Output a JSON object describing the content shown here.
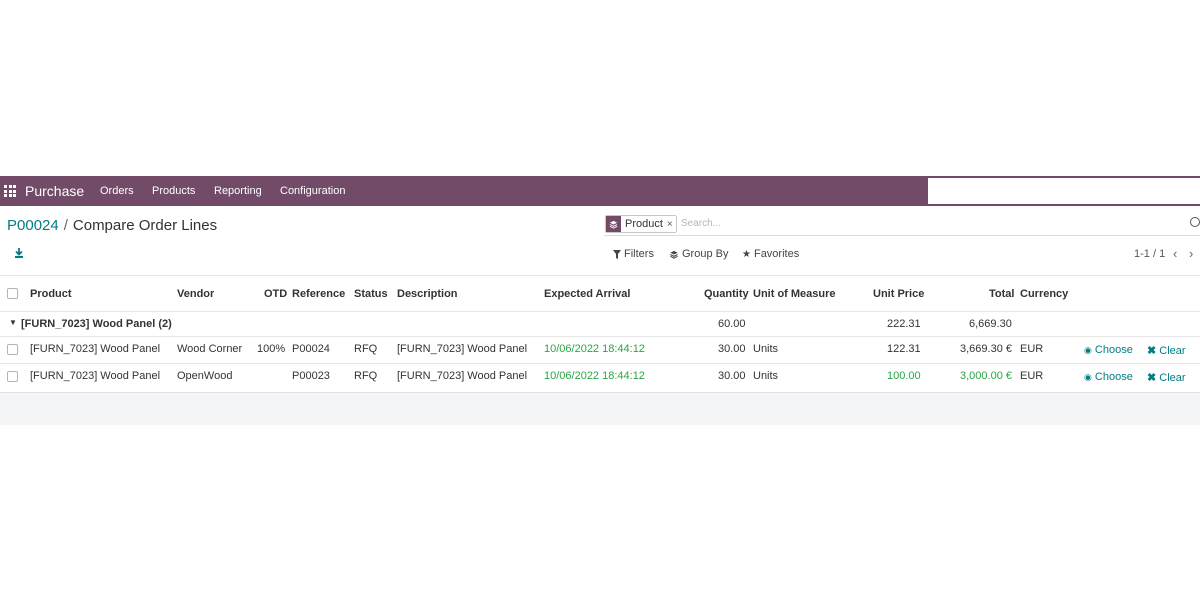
{
  "navbar": {
    "app_name": "Purchase",
    "menu": [
      "Orders",
      "Products",
      "Reporting",
      "Configuration"
    ],
    "color": "#714b67"
  },
  "breadcrumb": {
    "parent": "P00024",
    "separator": "/",
    "current": "Compare Order Lines"
  },
  "search": {
    "facet_label": "Product",
    "facet_remove": "×",
    "placeholder": "Search..."
  },
  "control_panel": {
    "filters": "Filters",
    "group_by": "Group By",
    "favorites": "Favorites",
    "pager": "1-1 / 1"
  },
  "table": {
    "headers": {
      "product": "Product",
      "vendor": "Vendor",
      "otd": "OTD",
      "reference": "Reference",
      "status": "Status",
      "description": "Description",
      "expected_arrival": "Expected Arrival",
      "quantity": "Quantity",
      "uom": "Unit of Measure",
      "unit_price": "Unit Price",
      "total": "Total",
      "currency": "Currency"
    },
    "group": {
      "label": "[FURN_7023] Wood Panel (2)",
      "quantity": "60.00",
      "unit_price": "222.31",
      "total": "6,669.30"
    },
    "rows": [
      {
        "product": "[FURN_7023] Wood Panel",
        "vendor": "Wood Corner",
        "otd": "100%",
        "reference": "P00024",
        "status": "RFQ",
        "description": "[FURN_7023] Wood Panel",
        "expected_arrival": "10/06/2022 18:44:12",
        "quantity": "30.00",
        "uom": "Units",
        "unit_price": "122.31",
        "total": "3,669.30 €",
        "currency": "EUR",
        "choose": "Choose",
        "clear": "Clear"
      },
      {
        "product": "[FURN_7023] Wood Panel",
        "vendor": "OpenWood",
        "otd": "",
        "reference": "P00023",
        "status": "RFQ",
        "description": "[FURN_7023] Wood Panel",
        "expected_arrival": "10/06/2022 18:44:12",
        "quantity": "30.00",
        "uom": "Units",
        "unit_price": "100.00",
        "total": "3,000.00 €",
        "currency": "EUR",
        "choose": "Choose",
        "clear": "Clear"
      }
    ]
  }
}
